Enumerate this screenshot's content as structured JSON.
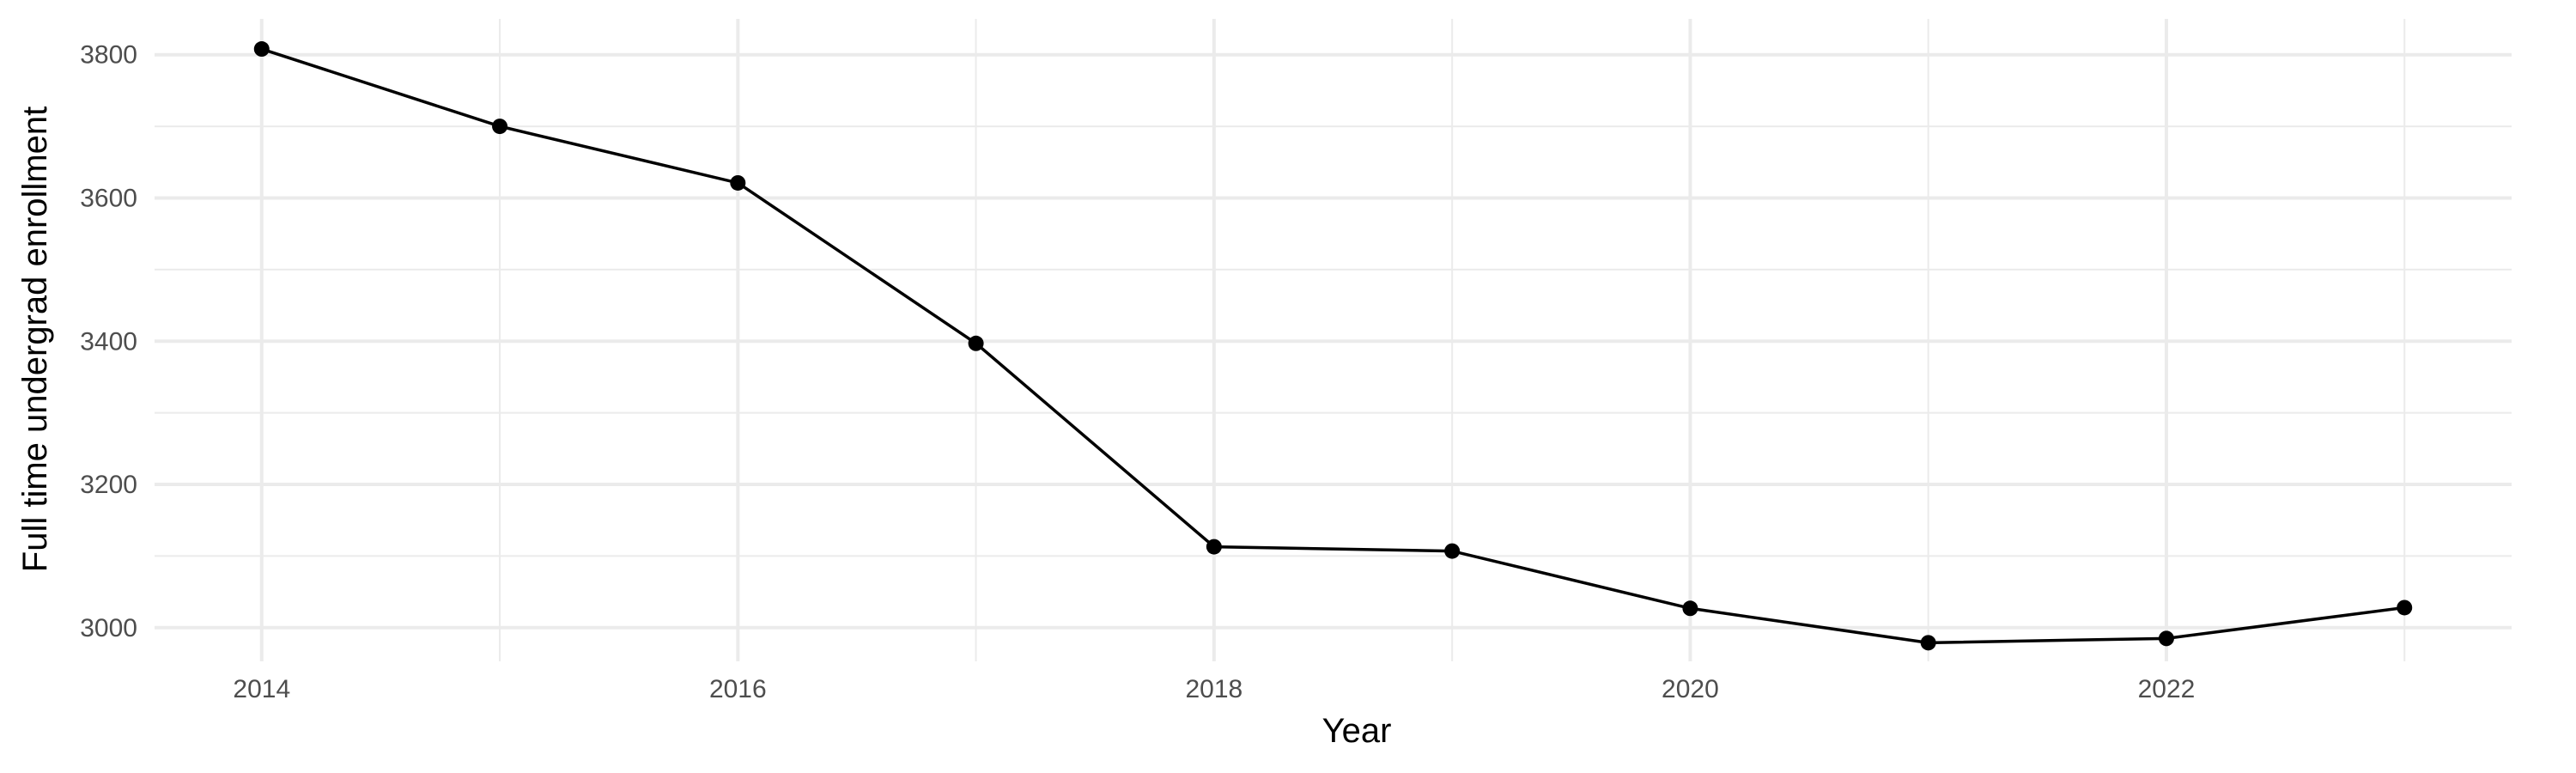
{
  "chart_data": {
    "type": "line",
    "title": "",
    "xlabel": "Year",
    "ylabel": "Full time undergrad enrollment",
    "x": [
      2014,
      2015,
      2016,
      2017,
      2018,
      2019,
      2020,
      2021,
      2022,
      2023
    ],
    "series": [
      {
        "values": [
          3808,
          3700,
          3621,
          3397,
          3113,
          3107,
          3027,
          2979,
          2985,
          3028
        ]
      }
    ],
    "xlim": [
      2013.55,
      2023.45
    ],
    "ylim": [
      2953,
      3850
    ],
    "x_ticks": [
      2014,
      2016,
      2018,
      2020,
      2022
    ],
    "x_tick_labels": [
      "2014",
      "2016",
      "2018",
      "2020",
      "2022"
    ],
    "y_ticks": [
      3000,
      3200,
      3400,
      3600,
      3800
    ],
    "y_tick_labels": [
      "3000",
      "3200",
      "3400",
      "3600",
      "3800"
    ],
    "grid": true,
    "legend": "none",
    "colors": {
      "line": "#000000",
      "grid": "#ebebeb",
      "tick_text": "#4d4d4d",
      "background": "#ffffff"
    }
  }
}
